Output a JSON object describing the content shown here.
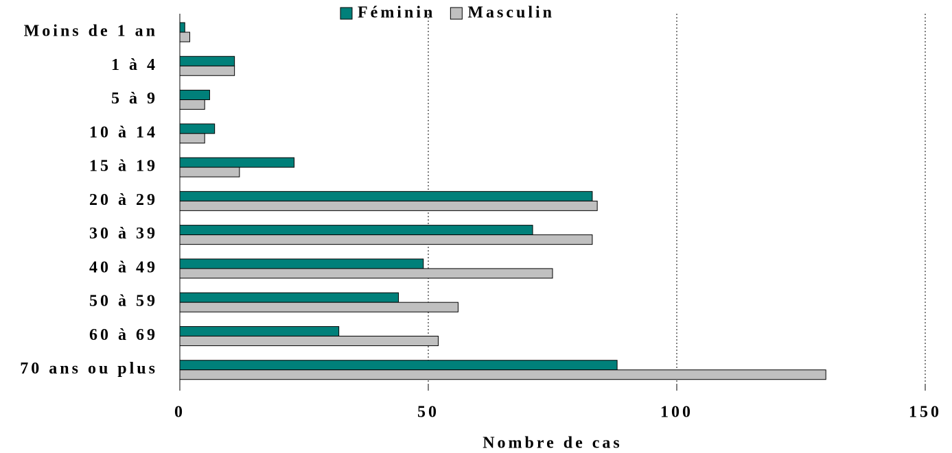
{
  "chart_data": {
    "type": "hbar",
    "categories": [
      "Moins de 1 an",
      "1 à 4",
      "5 à 9",
      "10 à 14",
      "15 à 19",
      "20 à 29",
      "30 à 39",
      "40 à 49",
      "50 à 59",
      "60 à 69",
      "70 ans ou plus"
    ],
    "series": [
      {
        "name": "Féminin",
        "color": "#00807a",
        "values": [
          1,
          11,
          6,
          7,
          23,
          83,
          71,
          49,
          44,
          32,
          88
        ]
      },
      {
        "name": "Masculin",
        "color": "#c0c0c0",
        "values": [
          2,
          11,
          5,
          5,
          12,
          84,
          83,
          75,
          56,
          52,
          130
        ]
      }
    ],
    "xlabel": "Nombre de cas",
    "xlim": [
      0,
      150
    ],
    "xticks": [
      0,
      50,
      100,
      150
    ],
    "grid": true,
    "legend": "top"
  }
}
